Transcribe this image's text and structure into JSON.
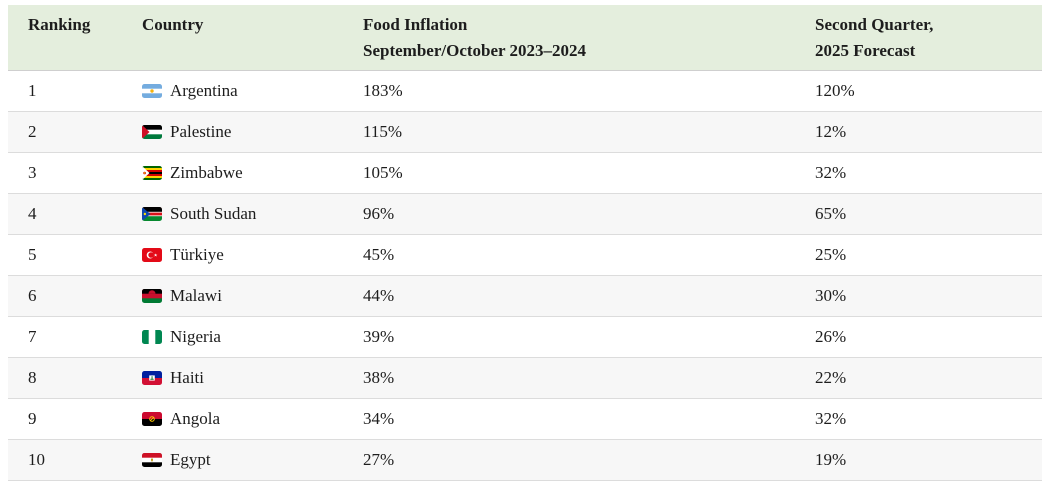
{
  "colors": {
    "header_bg": "#e4eedd",
    "row_alt_bg": "#f7f7f7",
    "row_border": "#dcdcdc",
    "header_border": "#cfcfcf",
    "text": "#1d1d1d"
  },
  "chart_data": {
    "type": "table",
    "columns": [
      "Ranking",
      "Country",
      "Food Inflation September/October 2023–2024",
      "Second Quarter, 2025 Forecast"
    ],
    "column_display_lines": [
      [
        "Ranking",
        ""
      ],
      [
        "Country",
        ""
      ],
      [
        "Food Inflation",
        "September/October 2023–2024"
      ],
      [
        "Second Quarter,",
        "2025 Forecast"
      ]
    ],
    "rows": [
      {
        "ranking": "1",
        "flag": "argentina",
        "country": "Argentina",
        "food_inflation": "183%",
        "forecast_q2_2025": "120%"
      },
      {
        "ranking": "2",
        "flag": "palestine",
        "country": "Palestine",
        "food_inflation": "115%",
        "forecast_q2_2025": "12%"
      },
      {
        "ranking": "3",
        "flag": "zimbabwe",
        "country": "Zimbabwe",
        "food_inflation": "105%",
        "forecast_q2_2025": "32%"
      },
      {
        "ranking": "4",
        "flag": "south-sudan",
        "country": "South Sudan",
        "food_inflation": "96%",
        "forecast_q2_2025": "65%"
      },
      {
        "ranking": "5",
        "flag": "turkiye",
        "country": "Türkiye",
        "food_inflation": "45%",
        "forecast_q2_2025": "25%"
      },
      {
        "ranking": "6",
        "flag": "malawi",
        "country": "Malawi",
        "food_inflation": "44%",
        "forecast_q2_2025": "30%"
      },
      {
        "ranking": "7",
        "flag": "nigeria",
        "country": "Nigeria",
        "food_inflation": "39%",
        "forecast_q2_2025": "26%"
      },
      {
        "ranking": "8",
        "flag": "haiti",
        "country": "Haiti",
        "food_inflation": "38%",
        "forecast_q2_2025": "22%"
      },
      {
        "ranking": "9",
        "flag": "angola",
        "country": "Angola",
        "food_inflation": "34%",
        "forecast_q2_2025": "32%"
      },
      {
        "ranking": "10",
        "flag": "egypt",
        "country": "Egypt",
        "food_inflation": "27%",
        "forecast_q2_2025": "19%"
      }
    ]
  }
}
